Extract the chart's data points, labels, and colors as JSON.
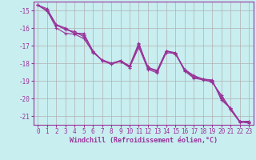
{
  "xlabel": "Windchill (Refroidissement éolien,°C)",
  "bg_color": "#c8eef0",
  "grid_color": "#b0b0b0",
  "line_color": "#993399",
  "xlim": [
    -0.5,
    23.5
  ],
  "ylim": [
    -21.5,
    -14.5
  ],
  "xticks": [
    0,
    1,
    2,
    3,
    4,
    5,
    6,
    7,
    8,
    9,
    10,
    11,
    12,
    13,
    14,
    15,
    16,
    17,
    18,
    19,
    20,
    21,
    22,
    23
  ],
  "yticks": [
    -21,
    -20,
    -19,
    -18,
    -17,
    -16,
    -15
  ],
  "series": [
    [
      -14.7,
      -14.9,
      -15.8,
      -16.1,
      -16.2,
      -16.5,
      -17.4,
      -17.8,
      -18.0,
      -17.9,
      -18.2,
      -17.0,
      -18.2,
      -18.5,
      -17.3,
      -17.4,
      -18.4,
      -18.8,
      -18.9,
      -19.1,
      -19.8,
      -20.6,
      -21.3,
      -21.3
    ],
    [
      -14.7,
      -15.0,
      -15.8,
      -16.0,
      -16.3,
      -16.3,
      -17.3,
      -17.85,
      -18.0,
      -17.85,
      -18.15,
      -16.85,
      -18.3,
      -18.45,
      -17.3,
      -17.5,
      -18.35,
      -18.7,
      -18.9,
      -18.95,
      -20.1,
      -20.55,
      -21.3,
      -21.3
    ],
    [
      -14.7,
      -15.0,
      -16.0,
      -16.3,
      -16.35,
      -16.6,
      -17.35,
      -17.85,
      -18.05,
      -17.9,
      -18.25,
      -17.1,
      -18.35,
      -18.55,
      -17.4,
      -17.45,
      -18.45,
      -18.85,
      -18.95,
      -19.05,
      -19.9,
      -20.65,
      -21.35,
      -21.4
    ],
    [
      -14.7,
      -15.05,
      -15.85,
      -16.05,
      -16.3,
      -16.4,
      -17.3,
      -17.85,
      -18.05,
      -17.85,
      -18.2,
      -16.9,
      -18.25,
      -18.4,
      -17.3,
      -17.45,
      -18.35,
      -18.75,
      -18.9,
      -19.0,
      -20.0,
      -20.55,
      -21.3,
      -21.35
    ]
  ],
  "tick_fontsize": 5.5,
  "xlabel_fontsize": 6,
  "ylabel_fontsize": 6
}
